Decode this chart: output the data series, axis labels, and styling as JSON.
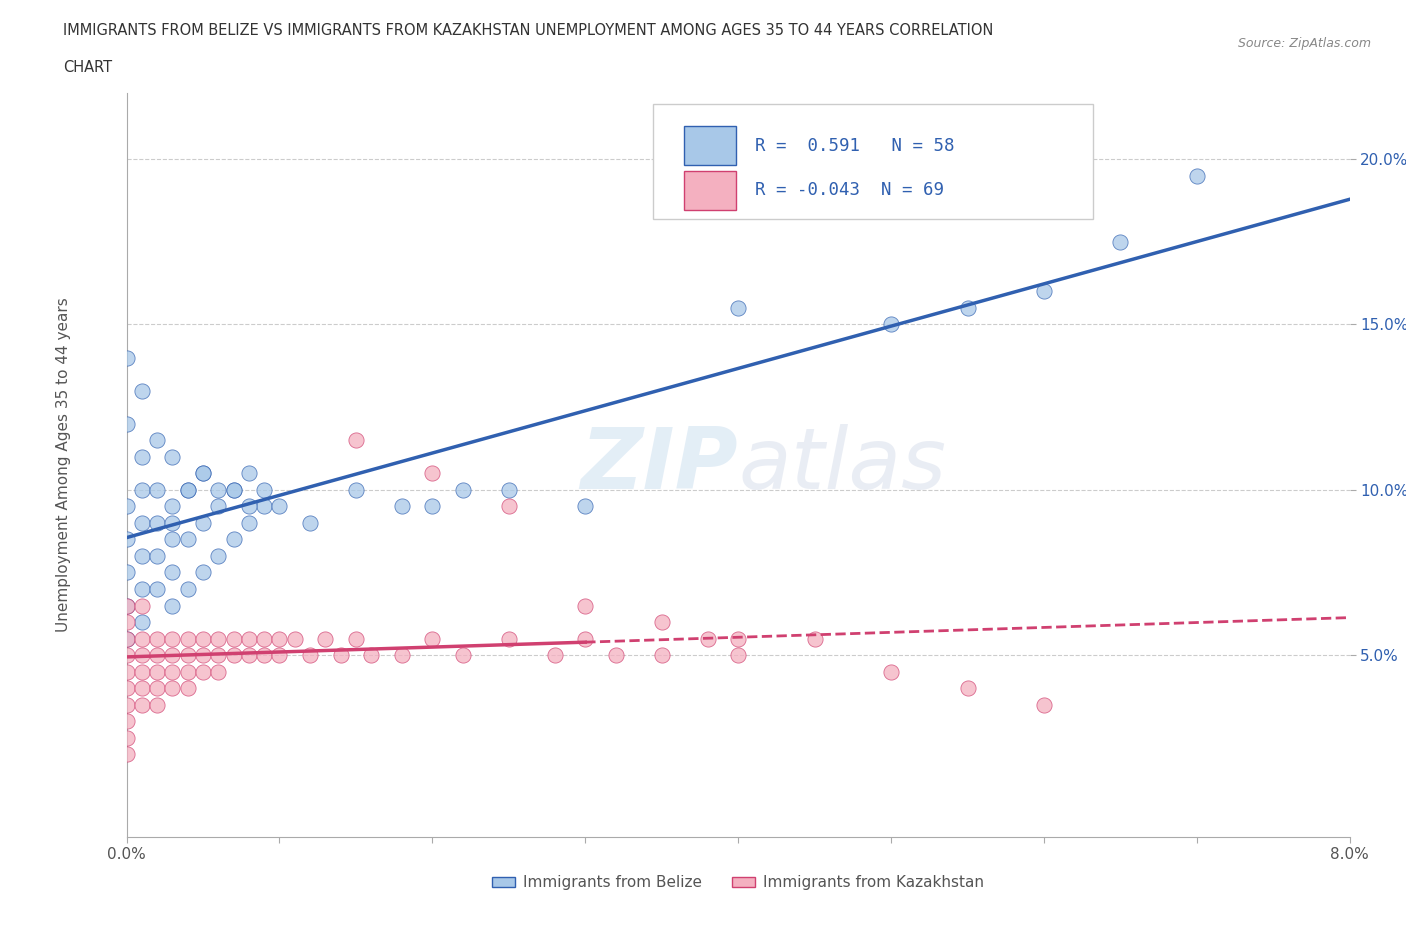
{
  "title_line1": "IMMIGRANTS FROM BELIZE VS IMMIGRANTS FROM KAZAKHSTAN UNEMPLOYMENT AMONG AGES 35 TO 44 YEARS CORRELATION",
  "title_line2": "CHART",
  "source": "Source: ZipAtlas.com",
  "ylabel": "Unemployment Among Ages 35 to 44 years",
  "xlim": [
    0.0,
    0.08
  ],
  "ylim": [
    -0.005,
    0.22
  ],
  "belize_color": "#a8c8e8",
  "belize_line_color": "#3060b0",
  "kazakhstan_color": "#f4b0c0",
  "kazakhstan_line_color": "#d04070",
  "belize_R": 0.591,
  "belize_N": 58,
  "kazakhstan_R": -0.043,
  "kazakhstan_N": 69,
  "watermark_zip": "ZIP",
  "watermark_atlas": "atlas",
  "background_color": "#ffffff",
  "grid_color": "#cccccc",
  "belize_scatter_x": [
    0.0,
    0.0,
    0.0,
    0.0,
    0.0,
    0.001,
    0.001,
    0.001,
    0.001,
    0.001,
    0.002,
    0.002,
    0.002,
    0.003,
    0.003,
    0.003,
    0.003,
    0.004,
    0.004,
    0.004,
    0.005,
    0.005,
    0.005,
    0.006,
    0.006,
    0.007,
    0.007,
    0.008,
    0.008,
    0.009,
    0.0,
    0.0,
    0.001,
    0.001,
    0.002,
    0.002,
    0.003,
    0.003,
    0.004,
    0.005,
    0.006,
    0.007,
    0.008,
    0.009,
    0.01,
    0.012,
    0.015,
    0.018,
    0.02,
    0.022,
    0.025,
    0.03,
    0.04,
    0.05,
    0.055,
    0.06,
    0.065,
    0.07
  ],
  "belize_scatter_y": [
    0.055,
    0.065,
    0.075,
    0.085,
    0.095,
    0.06,
    0.07,
    0.08,
    0.09,
    0.1,
    0.07,
    0.08,
    0.09,
    0.065,
    0.075,
    0.085,
    0.095,
    0.07,
    0.085,
    0.1,
    0.075,
    0.09,
    0.105,
    0.08,
    0.095,
    0.085,
    0.1,
    0.09,
    0.105,
    0.095,
    0.12,
    0.14,
    0.11,
    0.13,
    0.1,
    0.115,
    0.09,
    0.11,
    0.1,
    0.105,
    0.1,
    0.1,
    0.095,
    0.1,
    0.095,
    0.09,
    0.1,
    0.095,
    0.095,
    0.1,
    0.1,
    0.095,
    0.155,
    0.15,
    0.155,
    0.16,
    0.175,
    0.195
  ],
  "kazakhstan_scatter_x": [
    0.0,
    0.0,
    0.0,
    0.0,
    0.0,
    0.0,
    0.0,
    0.0,
    0.0,
    0.0,
    0.001,
    0.001,
    0.001,
    0.001,
    0.001,
    0.001,
    0.002,
    0.002,
    0.002,
    0.002,
    0.002,
    0.003,
    0.003,
    0.003,
    0.003,
    0.004,
    0.004,
    0.004,
    0.004,
    0.005,
    0.005,
    0.005,
    0.006,
    0.006,
    0.006,
    0.007,
    0.007,
    0.008,
    0.008,
    0.009,
    0.009,
    0.01,
    0.01,
    0.011,
    0.012,
    0.013,
    0.014,
    0.015,
    0.016,
    0.018,
    0.02,
    0.022,
    0.025,
    0.028,
    0.03,
    0.032,
    0.035,
    0.038,
    0.04,
    0.045,
    0.015,
    0.02,
    0.025,
    0.03,
    0.035,
    0.04,
    0.05,
    0.055,
    0.06
  ],
  "kazakhstan_scatter_y": [
    0.055,
    0.05,
    0.045,
    0.04,
    0.035,
    0.03,
    0.025,
    0.02,
    0.065,
    0.06,
    0.055,
    0.05,
    0.045,
    0.04,
    0.035,
    0.065,
    0.055,
    0.05,
    0.045,
    0.04,
    0.035,
    0.055,
    0.05,
    0.045,
    0.04,
    0.055,
    0.05,
    0.045,
    0.04,
    0.055,
    0.05,
    0.045,
    0.055,
    0.05,
    0.045,
    0.055,
    0.05,
    0.055,
    0.05,
    0.055,
    0.05,
    0.055,
    0.05,
    0.055,
    0.05,
    0.055,
    0.05,
    0.055,
    0.05,
    0.05,
    0.055,
    0.05,
    0.055,
    0.05,
    0.055,
    0.05,
    0.05,
    0.055,
    0.05,
    0.055,
    0.115,
    0.105,
    0.095,
    0.065,
    0.06,
    0.055,
    0.045,
    0.04,
    0.035
  ]
}
